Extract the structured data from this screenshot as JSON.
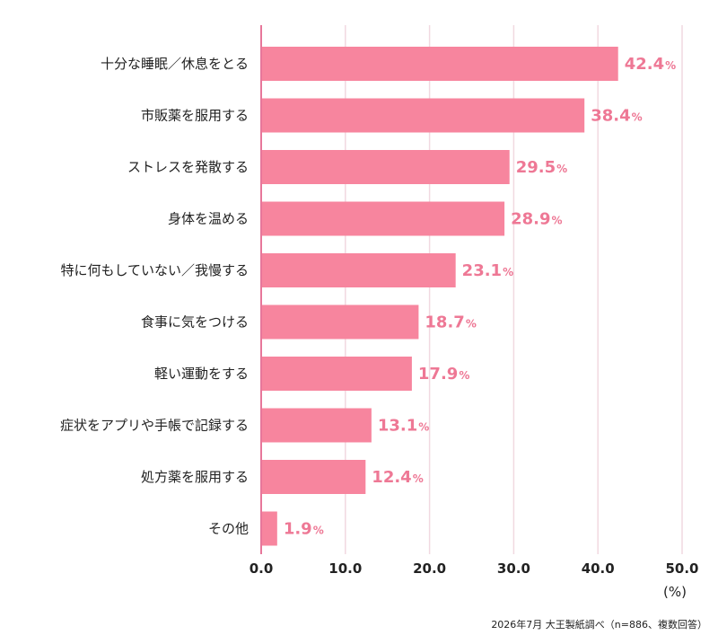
{
  "chart_data": {
    "type": "bar",
    "orientation": "horizontal",
    "categories": [
      "十分な睡眠／休息をとる",
      "市販薬を服用する",
      "ストレスを発散する",
      "身体を温める",
      "特に何もしていない／我慢する",
      "食事に気をつける",
      "軽い運動をする",
      "症状をアプリや手帳で記録する",
      "処方薬を服用する",
      "その他"
    ],
    "values": [
      42.4,
      38.4,
      29.5,
      28.9,
      23.1,
      18.7,
      17.9,
      13.1,
      12.4,
      1.9
    ],
    "value_labels": [
      "42.4",
      "38.4",
      "29.5",
      "28.9",
      "23.1",
      "18.7",
      "17.9",
      "13.1",
      "12.4",
      "1.9"
    ],
    "value_suffix": "%",
    "xlim": [
      0,
      50
    ],
    "x_ticks": [
      "0.0",
      "10.0",
      "20.0",
      "30.0",
      "40.0",
      "50.0"
    ],
    "x_unit": "(%)",
    "grid": true,
    "colors": {
      "bar": "#f7859e",
      "value_label": "#ee7895",
      "axis": "#e7779a",
      "grid": "#f1d9e1"
    }
  },
  "source_note": "2026年7月 大王製紙調べ（n=886、複数回答）"
}
